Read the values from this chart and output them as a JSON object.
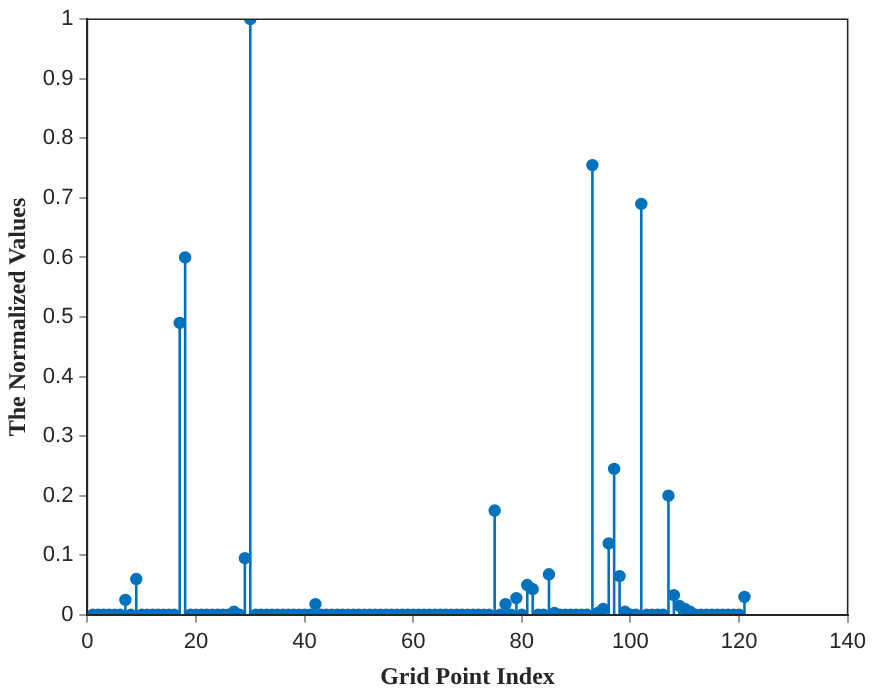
{
  "chart_data": {
    "type": "lollipop",
    "xlabel": "Grid Point Index",
    "ylabel": "The Normalized Values",
    "xlim": [
      0,
      140
    ],
    "xticks": [
      0,
      20,
      40,
      60,
      80,
      100,
      120,
      140
    ],
    "ylim": [
      0,
      1
    ],
    "yticks": [
      0,
      0.1,
      0.2,
      0.3,
      0.4,
      0.5,
      0.6,
      0.7,
      0.8,
      0.9,
      1
    ],
    "grid": false,
    "legend": false,
    "marker": "circle",
    "series": [
      {
        "color": "#0072bd",
        "x": [
          1,
          2,
          3,
          4,
          5,
          6,
          7,
          8,
          9,
          10,
          11,
          12,
          13,
          14,
          15,
          16,
          17,
          18,
          19,
          20,
          21,
          22,
          23,
          24,
          25,
          26,
          27,
          28,
          29,
          30,
          31,
          32,
          33,
          34,
          35,
          36,
          37,
          38,
          39,
          40,
          41,
          42,
          43,
          44,
          45,
          46,
          47,
          48,
          49,
          50,
          51,
          52,
          53,
          54,
          55,
          56,
          57,
          58,
          59,
          60,
          61,
          62,
          63,
          64,
          65,
          66,
          67,
          68,
          69,
          70,
          71,
          72,
          73,
          74,
          75,
          76,
          77,
          78,
          79,
          80,
          81,
          82,
          83,
          84,
          85,
          86,
          87,
          88,
          89,
          90,
          91,
          92,
          93,
          94,
          95,
          96,
          97,
          98,
          99,
          100,
          101,
          102,
          103,
          104,
          105,
          106,
          107,
          108,
          109,
          110,
          111,
          112,
          113,
          114,
          115,
          116,
          117,
          118,
          119,
          120,
          121
        ],
        "values": [
          0,
          0,
          0,
          0,
          0,
          0,
          0.025,
          0,
          0.06,
          0,
          0,
          0,
          0,
          0,
          0,
          0,
          0.49,
          0.6,
          0,
          0,
          0,
          0,
          0,
          0,
          0,
          0,
          0.005,
          0,
          0.095,
          1,
          0,
          0,
          0,
          0,
          0,
          0,
          0,
          0,
          0,
          0,
          0,
          0.018,
          0,
          0,
          0,
          0,
          0,
          0,
          0,
          0,
          0,
          0,
          0,
          0,
          0,
          0,
          0,
          0,
          0,
          0,
          0,
          0,
          0,
          0,
          0,
          0,
          0,
          0,
          0,
          0,
          0,
          0,
          0,
          0,
          0.175,
          0,
          0.018,
          0,
          0.028,
          0,
          0.05,
          0.043,
          0,
          0,
          0.068,
          0.003,
          0,
          0,
          0,
          0,
          0,
          0,
          0.755,
          0.003,
          0.01,
          0.12,
          0.245,
          0.065,
          0.005,
          0,
          0,
          0.69,
          0,
          0,
          0,
          0,
          0.2,
          0.033,
          0.015,
          0.01,
          0.005,
          0,
          0,
          0,
          0,
          0,
          0,
          0,
          0,
          0,
          0.03
        ]
      }
    ]
  }
}
